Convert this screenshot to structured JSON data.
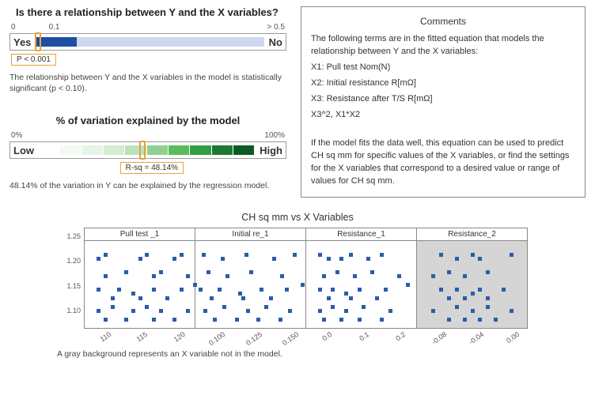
{
  "relationship": {
    "title": "Is there a relationship between Y and the X variables?",
    "scale_left": "0",
    "scale_mid": "0.1",
    "scale_right": "> 0.5",
    "yes": "Yes",
    "no": "No",
    "fill_pct": 18,
    "marker_pct": 1,
    "badge": "P < 0.001",
    "caption": "The relationship between Y and the X variables in the model is statistically significant (p < 0.10).",
    "fill_color": "#1f4ea1",
    "track_color": "#cfd8ef",
    "marker_color": "#e6a23c"
  },
  "variation": {
    "title": "% of variation explained by the model",
    "scale_left": "0%",
    "scale_right": "100%",
    "low": "Low",
    "high": "High",
    "cells": [
      "#ffffff",
      "#f3faf3",
      "#e5f4e5",
      "#d3edd3",
      "#b9e3b9",
      "#8fd18f",
      "#5bbb5b",
      "#2f9e45",
      "#1a7a33",
      "#0d5a25"
    ],
    "marker_pct": 48.14,
    "badge": "R-sq = 48.14%",
    "caption": "48.14% of the variation in Y can be explained by the regression model.",
    "marker_color": "#e6a23c"
  },
  "comments": {
    "title": "Comments",
    "intro": "The following terms are in the fitted equation that models the relationship between Y and the X variables:",
    "x1": "X1: Pull test Nom(N)",
    "x2": "X2: Initial resistance R[mΩ]",
    "x3": "X3: Resistance after T/S R[mΩ]",
    "x4": "X3^2, X1*X2",
    "para2": "If the model fits the data well, this equation can be used to predict CH sq mm for specific values of the X variables, or find the settings for the X variables that correspond to a desired value or range of values for CH sq mm."
  },
  "scatter": {
    "title": "CH sq mm vs X Variables",
    "ylabels": [
      "1.25",
      "1.20",
      "1.15",
      "1.10"
    ],
    "ylim": [
      1.07,
      1.27
    ],
    "point_color": "#2a5caa",
    "gray_bg": "#d5d5d5",
    "panels": [
      {
        "label": "Pull test _1",
        "ticks": [
          "110",
          "115",
          "120"
        ],
        "xlim": [
          106,
          122
        ],
        "gray": false,
        "points": [
          [
            108,
            1.23
          ],
          [
            109,
            1.24
          ],
          [
            115,
            1.24
          ],
          [
            114,
            1.23
          ],
          [
            119,
            1.23
          ],
          [
            120,
            1.24
          ],
          [
            109,
            1.19
          ],
          [
            112,
            1.2
          ],
          [
            116,
            1.19
          ],
          [
            117,
            1.2
          ],
          [
            121,
            1.19
          ],
          [
            108,
            1.16
          ],
          [
            111,
            1.16
          ],
          [
            113,
            1.15
          ],
          [
            116,
            1.16
          ],
          [
            120,
            1.16
          ],
          [
            122,
            1.17
          ],
          [
            110,
            1.14
          ],
          [
            114,
            1.14
          ],
          [
            118,
            1.14
          ],
          [
            108,
            1.11
          ],
          [
            110,
            1.12
          ],
          [
            113,
            1.11
          ],
          [
            115,
            1.12
          ],
          [
            117,
            1.11
          ],
          [
            121,
            1.11
          ],
          [
            109,
            1.09
          ],
          [
            112,
            1.09
          ],
          [
            116,
            1.09
          ],
          [
            119,
            1.09
          ]
        ]
      },
      {
        "label": "Initial re_1",
        "ticks": [
          "0.100",
          "0.125",
          "0.150"
        ],
        "xlim": [
          0.09,
          0.16
        ],
        "gray": false,
        "points": [
          [
            0.095,
            1.24
          ],
          [
            0.107,
            1.23
          ],
          [
            0.122,
            1.24
          ],
          [
            0.14,
            1.23
          ],
          [
            0.153,
            1.24
          ],
          [
            0.098,
            1.2
          ],
          [
            0.11,
            1.19
          ],
          [
            0.125,
            1.2
          ],
          [
            0.145,
            1.19
          ],
          [
            0.093,
            1.16
          ],
          [
            0.105,
            1.16
          ],
          [
            0.118,
            1.15
          ],
          [
            0.132,
            1.16
          ],
          [
            0.148,
            1.16
          ],
          [
            0.158,
            1.17
          ],
          [
            0.1,
            1.14
          ],
          [
            0.12,
            1.14
          ],
          [
            0.138,
            1.14
          ],
          [
            0.096,
            1.11
          ],
          [
            0.108,
            1.12
          ],
          [
            0.123,
            1.11
          ],
          [
            0.135,
            1.12
          ],
          [
            0.15,
            1.11
          ],
          [
            0.102,
            1.09
          ],
          [
            0.116,
            1.09
          ],
          [
            0.13,
            1.09
          ],
          [
            0.144,
            1.09
          ]
        ]
      },
      {
        "label": "Resistance_1",
        "ticks": [
          "0.0",
          "0.1",
          "0.2"
        ],
        "xlim": [
          -0.03,
          0.22
        ],
        "gray": false,
        "points": [
          [
            0.0,
            1.24
          ],
          [
            0.02,
            1.23
          ],
          [
            0.07,
            1.24
          ],
          [
            0.05,
            1.23
          ],
          [
            0.11,
            1.23
          ],
          [
            0.14,
            1.24
          ],
          [
            0.01,
            1.19
          ],
          [
            0.04,
            1.2
          ],
          [
            0.08,
            1.19
          ],
          [
            0.12,
            1.2
          ],
          [
            0.18,
            1.19
          ],
          [
            0.0,
            1.16
          ],
          [
            0.03,
            1.16
          ],
          [
            0.06,
            1.15
          ],
          [
            0.09,
            1.16
          ],
          [
            0.15,
            1.16
          ],
          [
            0.2,
            1.17
          ],
          [
            0.02,
            1.14
          ],
          [
            0.07,
            1.14
          ],
          [
            0.13,
            1.14
          ],
          [
            0.0,
            1.11
          ],
          [
            0.03,
            1.12
          ],
          [
            0.06,
            1.11
          ],
          [
            0.1,
            1.12
          ],
          [
            0.16,
            1.11
          ],
          [
            0.01,
            1.09
          ],
          [
            0.05,
            1.09
          ],
          [
            0.09,
            1.09
          ],
          [
            0.14,
            1.09
          ]
        ]
      },
      {
        "label": "Resistance_2",
        "ticks": [
          "-0.08",
          "-0.04",
          "0.00"
        ],
        "xlim": [
          -0.1,
          0.04
        ],
        "gray": true,
        "points": [
          [
            -0.07,
            1.24
          ],
          [
            -0.05,
            1.23
          ],
          [
            -0.03,
            1.24
          ],
          [
            -0.02,
            1.23
          ],
          [
            0.02,
            1.24
          ],
          [
            -0.08,
            1.19
          ],
          [
            -0.06,
            1.2
          ],
          [
            -0.04,
            1.19
          ],
          [
            -0.01,
            1.2
          ],
          [
            -0.07,
            1.16
          ],
          [
            -0.05,
            1.16
          ],
          [
            -0.03,
            1.15
          ],
          [
            -0.02,
            1.16
          ],
          [
            0.01,
            1.16
          ],
          [
            -0.06,
            1.14
          ],
          [
            -0.04,
            1.14
          ],
          [
            -0.01,
            1.14
          ],
          [
            -0.08,
            1.11
          ],
          [
            -0.05,
            1.12
          ],
          [
            -0.03,
            1.11
          ],
          [
            -0.01,
            1.12
          ],
          [
            0.02,
            1.11
          ],
          [
            -0.06,
            1.09
          ],
          [
            -0.04,
            1.09
          ],
          [
            -0.02,
            1.09
          ],
          [
            0.0,
            1.09
          ]
        ]
      }
    ],
    "footer": "A gray background represents an X variable not in the model."
  }
}
